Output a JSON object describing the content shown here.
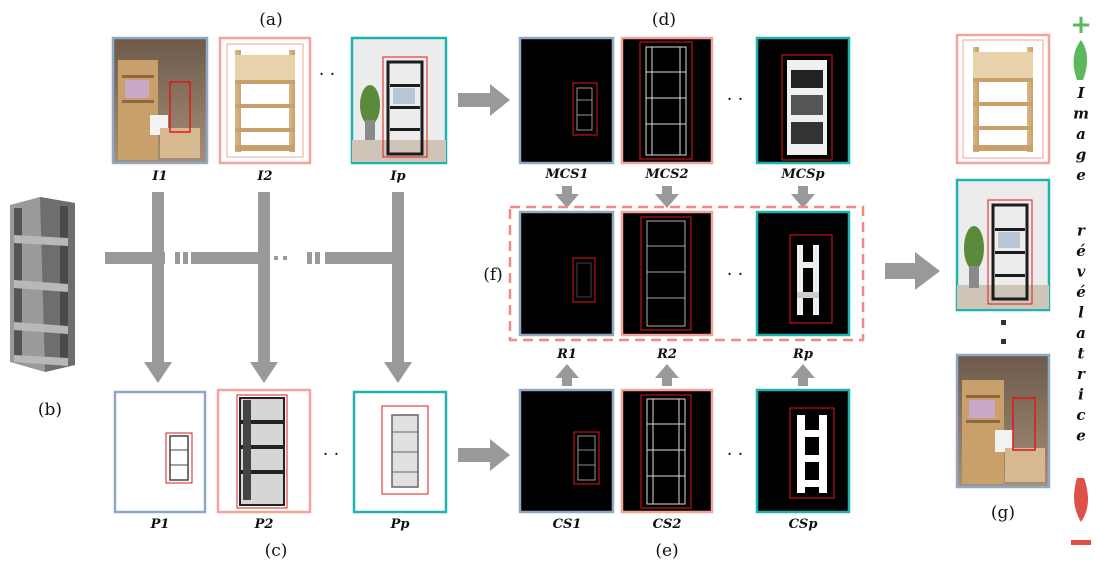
{
  "panel_labels": {
    "a": "(a)",
    "b": "(b)",
    "c": "(c)",
    "d": "(d)",
    "e": "(e)",
    "f": "(f)",
    "g": "(g)"
  },
  "row_images": {
    "first": "I1",
    "second": "I2",
    "last": "Ip"
  },
  "row_projections": {
    "first": "P1",
    "second": "P2",
    "last": "Pp"
  },
  "row_masked_contour": {
    "first": "MCS1",
    "second": "MCS2",
    "last": "MCSp"
  },
  "row_results": {
    "first": "R1",
    "second": "R2",
    "last": "Rp"
  },
  "row_contour": {
    "first": "CS1",
    "second": "CS2",
    "last": "CSp"
  },
  "ellipsis": "· ·",
  "ranking": {
    "plus": "+",
    "minus": "−",
    "letters": [
      "I",
      "m",
      "a",
      "g",
      "e",
      "r",
      "é",
      "v",
      "é",
      "l",
      "a",
      "t",
      "r",
      "i",
      "c",
      "e"
    ]
  },
  "colors": {
    "blue_frame": "#8fa9c4",
    "pink_frame": "#f2a39b",
    "teal_frame": "#1fb3b0",
    "arrow_gray": "#999999",
    "dashed_box": "#f08a84",
    "bbox_red": "#e01818",
    "plus_green": "#5cb85c",
    "minus_red": "#e0504b"
  }
}
